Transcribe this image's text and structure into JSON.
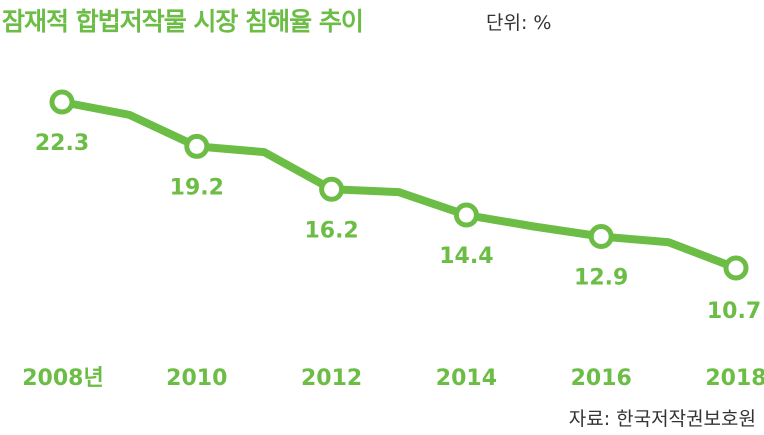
{
  "header": {
    "title": "잠재적 합법저작물 시장 침해율 추이",
    "unit": "단위: %"
  },
  "footer": {
    "source": "자료: 한국저작권보호원"
  },
  "colors": {
    "accent": "#6cbd45",
    "text": "#333333"
  },
  "chart_data": {
    "type": "line",
    "title": "잠재적 합법저작물 시장 침해율 추이",
    "unit": "%",
    "x": [
      "2008",
      "2009",
      "2010",
      "2011",
      "2012",
      "2013",
      "2014",
      "2015",
      "2016",
      "2017",
      "2018"
    ],
    "series": [
      {
        "values": [
          22.3,
          21.4,
          19.2,
          18.8,
          16.2,
          16.0,
          14.4,
          13.6,
          12.9,
          12.5,
          10.7
        ]
      }
    ],
    "labeled_points": [
      0,
      2,
      4,
      6,
      8,
      10
    ],
    "value_labels": [
      "22.3",
      "19.2",
      "16.2",
      "14.4",
      "12.9",
      "10.7"
    ],
    "tick_labels": [
      "2008년",
      "2010",
      "2012",
      "2014",
      "2016",
      "2018"
    ],
    "grid": false,
    "legend": "none"
  }
}
